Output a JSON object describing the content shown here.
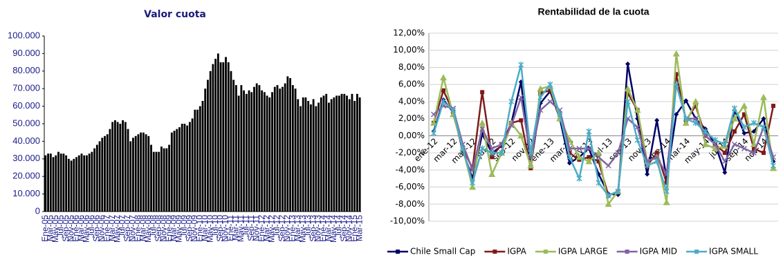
{
  "chart_data": [
    {
      "type": "bar",
      "title": "Valor cuota",
      "color": "#000000",
      "label_color": "#1a1a8a",
      "categories": [
        "Ene-05",
        null,
        "Mar-05",
        null,
        "May-05",
        null,
        "Jul-05",
        null,
        "Sep-05",
        null,
        "Nov-05",
        null,
        "Ene-06",
        null,
        "Mar-06",
        null,
        "May-06",
        null,
        "Jul-06",
        null,
        "Sep-06",
        null,
        "Nov-06",
        null,
        "Ene-07",
        null,
        "Mar-07",
        null,
        "May-07",
        null,
        "Jul-07",
        null,
        "Sep-07",
        null,
        "Nov-07",
        null,
        "Ene-08",
        null,
        "Mar-08",
        null,
        "May-08",
        null,
        "Jul-08",
        null,
        "Sep-08",
        null,
        "Nov-08",
        null,
        "Ene-09",
        null,
        "Mar-09",
        null,
        "May-09",
        null,
        "Jul-09",
        null,
        "Sep-09",
        null,
        "Nov-09",
        null,
        "Ene-10",
        null,
        "Mar-10",
        null,
        "May-10",
        null,
        "Jul-10",
        null,
        "Sep-10",
        null,
        "Nov-10",
        null,
        "Ene-11",
        null,
        "Mar-11",
        null,
        "May-11",
        null,
        "Jul-11",
        null,
        "Sep-11",
        null,
        "Nov-11",
        null,
        "Ene-12",
        null,
        "Mar-12",
        null,
        "May-12",
        null,
        "Jul-12",
        null,
        "Sep-12",
        null,
        "Nov-12",
        null,
        "Ene-13",
        null,
        "Mar-13",
        null,
        "May-13",
        null,
        "Jul-13",
        null,
        "Sep-13",
        null,
        "Nov-13",
        null,
        "Ene-14",
        null,
        "Mar-14",
        null,
        "May-14",
        null,
        "Jul-14",
        null,
        "Sep-14",
        null,
        "Nov-14",
        null,
        "Ene-15",
        null,
        "Mar-15"
      ],
      "values": [
        32000,
        33000,
        33000,
        31000,
        32000,
        34000,
        33000,
        33000,
        32000,
        30000,
        29000,
        30000,
        31000,
        32000,
        33000,
        32000,
        32000,
        33000,
        34000,
        36000,
        38000,
        40000,
        42000,
        43000,
        44000,
        47000,
        51000,
        52000,
        51000,
        50000,
        52000,
        51000,
        47000,
        40000,
        42000,
        43000,
        44000,
        45000,
        45000,
        44000,
        43000,
        38000,
        34000,
        34000,
        34000,
        37000,
        36000,
        36000,
        38000,
        45000,
        46000,
        47000,
        48000,
        50000,
        50000,
        49000,
        51000,
        53000,
        58000,
        58000,
        60000,
        63000,
        70000,
        75000,
        80000,
        84000,
        87000,
        90000,
        85000,
        85000,
        88000,
        85000,
        80000,
        75000,
        72000,
        66000,
        72000,
        69000,
        67000,
        69000,
        68000,
        71000,
        73000,
        72000,
        69000,
        68000,
        66000,
        65000,
        68000,
        71000,
        72000,
        70000,
        71000,
        73000,
        77000,
        76000,
        72000,
        70000,
        64000,
        60000,
        65000,
        65000,
        63000,
        61000,
        64000,
        60000,
        62000,
        65000,
        66000,
        67000,
        62000,
        64000,
        65000,
        66000,
        66000,
        67000,
        67000,
        66000,
        64000,
        67000,
        63000,
        67000,
        65000
      ],
      "ylim": [
        0,
        100000
      ],
      "yticks": [
        0,
        {
          "value": 10000,
          "label": "10.000"
        },
        {
          "value": 20000,
          "label": "20.000"
        },
        {
          "value": 30000,
          "label": "30.000"
        },
        {
          "value": 40000,
          "label": "40.000"
        },
        {
          "value": 50000,
          "label": "50.000"
        },
        {
          "value": 60000,
          "label": "60.000"
        },
        {
          "value": 70000,
          "label": "70.000"
        },
        {
          "value": 80000,
          "label": "80.000"
        },
        {
          "value": 90000,
          "label": "90.000"
        },
        {
          "value": 100000,
          "label": "100.000"
        }
      ],
      "grid": false
    },
    {
      "type": "line",
      "title": "Rentabilidad de la cuota",
      "label_color": "#000000",
      "categories": [
        "ene-12",
        null,
        "mar-12",
        null,
        "may-12",
        null,
        "jul-12",
        null,
        "sep-12",
        null,
        "nov-12",
        null,
        "ene-13",
        null,
        "mar-13",
        null,
        "may-13",
        null,
        "jul-13",
        null,
        "sep-13",
        null,
        "nov-13",
        null,
        "ene-14",
        null,
        "mar-14",
        null,
        "may-14",
        null,
        "jul-14",
        null,
        "sep-14",
        null,
        "nov-14",
        null
      ],
      "series": [
        {
          "name": "Chile Small Cap",
          "color": "#000066",
          "marker": "diamond",
          "values": [
            0.5,
            4.2,
            2.8,
            -1.8,
            -5.0,
            0.2,
            -2.0,
            -1.2,
            1.5,
            6.3,
            -3.5,
            3.8,
            5.2,
            2.0,
            -3.2,
            -2.5,
            -1.5,
            -4.5,
            -6.8,
            -6.9,
            8.4,
            2.0,
            -4.5,
            1.8,
            -5.0,
            2.5,
            4.1,
            2.0,
            0.8,
            -1.0,
            -4.3,
            3.0,
            0.3,
            0.5,
            2.0,
            -3.0
          ]
        },
        {
          "name": "IGPA",
          "color": "#7f1a1a",
          "marker": "square",
          "values": [
            1.5,
            5.3,
            2.8,
            -1.5,
            -3.8,
            5.1,
            -2.5,
            -1.0,
            1.5,
            1.8,
            -3.8,
            5.0,
            5.3,
            2.5,
            -2.0,
            -2.8,
            -2.5,
            -3.0,
            -7.0,
            -6.5,
            5.0,
            3.0,
            -3.5,
            -2.0,
            -5.5,
            7.2,
            1.8,
            3.5,
            0.0,
            -1.0,
            -2.0,
            0.5,
            2.5,
            -1.5,
            -2.0,
            3.5
          ]
        },
        {
          "name": "IGPA LARGE",
          "color": "#9bbb59",
          "marker": "triangle",
          "values": [
            1.5,
            6.8,
            2.5,
            -1.5,
            -6.0,
            1.5,
            -4.5,
            -2.0,
            1.5,
            0.0,
            -3.5,
            5.5,
            5.8,
            2.0,
            -0.5,
            -2.5,
            -3.0,
            -2.0,
            -8.0,
            -6.5,
            5.5,
            3.0,
            -3.0,
            -2.5,
            -7.8,
            9.6,
            1.5,
            4.0,
            -1.0,
            -1.5,
            -1.2,
            2.0,
            3.5,
            -1.0,
            4.5,
            -3.8
          ]
        },
        {
          "name": "IGPA MID",
          "color": "#8064a2",
          "marker": "x",
          "values": [
            2.5,
            3.5,
            3.2,
            -1.0,
            -4.0,
            0.8,
            -1.5,
            -1.0,
            1.2,
            4.5,
            -2.5,
            3.0,
            4.0,
            3.0,
            -1.5,
            -1.5,
            -1.5,
            -2.5,
            -3.5,
            -2.0,
            2.0,
            1.0,
            -3.0,
            -2.5,
            -4.5,
            6.0,
            2.0,
            2.0,
            0.0,
            -1.0,
            -3.0,
            -1.0,
            -1.5,
            -2.0,
            1.0,
            -2.5
          ]
        },
        {
          "name": "IGPA SMALL",
          "color": "#4bacc6",
          "marker": "star",
          "values": [
            0.3,
            4.0,
            3.0,
            -1.5,
            -5.5,
            -1.5,
            -2.0,
            -2.0,
            4.0,
            8.3,
            -2.0,
            4.5,
            6.0,
            2.5,
            -2.5,
            -5.0,
            0.5,
            -5.5,
            -7.0,
            -6.5,
            4.0,
            -0.5,
            -3.5,
            -3.0,
            -6.5,
            6.0,
            2.0,
            1.5,
            0.5,
            -0.5,
            -1.0,
            3.2,
            1.0,
            1.5,
            1.0,
            -3.5
          ]
        }
      ],
      "ylim": [
        -10,
        12
      ],
      "yticks": [
        {
          "value": -10,
          "label": "-10,00%"
        },
        {
          "value": -8,
          "label": "-8,00%"
        },
        {
          "value": -6,
          "label": "-6,00%"
        },
        {
          "value": -4,
          "label": "-4,00%"
        },
        {
          "value": -2,
          "label": "-2,00%"
        },
        {
          "value": 0,
          "label": "0,00%"
        },
        {
          "value": 2,
          "label": "2,00%"
        },
        {
          "value": 4,
          "label": "4,00%"
        },
        {
          "value": 6,
          "label": "6,00%"
        },
        {
          "value": 8,
          "label": "8,00%"
        },
        {
          "value": 10,
          "label": "10,00%"
        },
        {
          "value": 12,
          "label": "12,00%"
        }
      ],
      "grid": true,
      "legend": "bottom"
    }
  ]
}
